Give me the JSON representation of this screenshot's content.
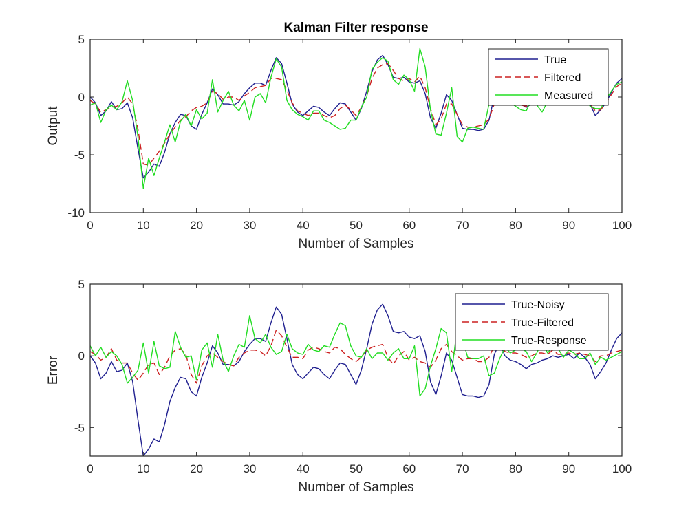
{
  "chart_data": [
    {
      "type": "line",
      "title": "Kalman Filter response",
      "xlabel": "Number of Samples",
      "ylabel": "Output",
      "xlim": [
        0,
        100
      ],
      "ylim": [
        -10,
        5
      ],
      "xticks": [
        0,
        10,
        20,
        30,
        40,
        50,
        60,
        70,
        80,
        90,
        100
      ],
      "yticks": [
        -10,
        -5,
        0,
        5
      ],
      "legend_position": "top-right",
      "grid": false,
      "x": [
        0,
        1,
        2,
        3,
        4,
        5,
        6,
        7,
        8,
        9,
        10,
        11,
        12,
        13,
        14,
        15,
        16,
        17,
        18,
        19,
        20,
        21,
        22,
        23,
        24,
        25,
        26,
        27,
        28,
        29,
        30,
        31,
        32,
        33,
        34,
        35,
        36,
        37,
        38,
        39,
        40,
        41,
        42,
        43,
        44,
        45,
        46,
        47,
        48,
        49,
        50,
        51,
        52,
        53,
        54,
        55,
        56,
        57,
        58,
        59,
        60,
        61,
        62,
        63,
        64,
        65,
        66,
        67,
        68,
        69,
        70,
        71,
        72,
        73,
        74,
        75,
        76,
        77,
        78,
        79,
        80,
        81,
        82,
        83,
        84,
        85,
        86,
        87,
        88,
        89,
        90,
        91,
        92,
        93,
        94,
        95,
        96,
        97,
        98,
        99,
        100
      ],
      "series": [
        {
          "name": "True",
          "color": "#1f1f8f",
          "dash": "solid",
          "values": [
            0,
            -0.5,
            -1.6,
            -1.2,
            -0.4,
            -1.1,
            -1.0,
            -0.5,
            -1.8,
            -4.5,
            -7.0,
            -6.5,
            -5.8,
            -6.0,
            -4.8,
            -3.2,
            -2.2,
            -1.5,
            -1.6,
            -2.5,
            -2.8,
            -1.5,
            -0.5,
            0.7,
            0.2,
            -0.6,
            -0.6,
            -0.7,
            -0.4,
            0.3,
            0.8,
            1.2,
            1.2,
            1.0,
            2.3,
            3.4,
            2.9,
            1.2,
            -0.6,
            -1.3,
            -1.6,
            -1.2,
            -0.8,
            -0.9,
            -1.3,
            -1.6,
            -1.0,
            -0.5,
            -0.6,
            -1.3,
            -2.0,
            -1.0,
            0.5,
            2.2,
            3.2,
            3.6,
            2.8,
            1.7,
            1.6,
            1.7,
            1.3,
            1.2,
            1.4,
            0.3,
            -1.8,
            -2.7,
            -1.4,
            0.2,
            -0.3,
            -1.5,
            -2.7,
            -2.8,
            -2.8,
            -2.9,
            -2.8,
            -2.0,
            0.1,
            0.9,
            0.0,
            -0.3,
            -0.4,
            -0.6,
            -0.9,
            -0.6,
            -0.5,
            -0.3,
            -0.2,
            0.0,
            -0.1,
            0.0,
            0.1,
            -0.2,
            0.2,
            -0.1,
            -0.6,
            -1.6,
            -1.1,
            -0.5,
            0.4,
            1.2,
            1.6
          ]
        },
        {
          "name": "Filtered",
          "color": "#cc2020",
          "dash": "dash",
          "values": [
            -0.3,
            -0.6,
            -1.3,
            -1.1,
            -0.9,
            -0.8,
            -0.5,
            0.0,
            -0.6,
            -2.8,
            -5.8,
            -5.9,
            -5.3,
            -4.7,
            -4.0,
            -3.2,
            -2.6,
            -2.0,
            -1.7,
            -1.2,
            -0.9,
            -0.8,
            -0.5,
            0.5,
            0.3,
            -0.2,
            0.0,
            0.0,
            -0.3,
            0.1,
            0.4,
            0.8,
            0.9,
            1.0,
            1.6,
            1.6,
            1.5,
            0.6,
            -0.5,
            -1.2,
            -1.4,
            -1.6,
            -1.4,
            -1.4,
            -1.6,
            -1.8,
            -1.6,
            -1.0,
            -0.7,
            -1.1,
            -1.6,
            -0.9,
            0.1,
            1.6,
            2.5,
            2.8,
            2.9,
            2.3,
            1.6,
            1.4,
            1.6,
            1.3,
            1.8,
            0.8,
            -1.0,
            -2.4,
            -1.9,
            -0.6,
            -0.6,
            -1.5,
            -2.4,
            -2.6,
            -2.6,
            -2.5,
            -2.4,
            -1.9,
            -0.6,
            0.2,
            -0.3,
            -0.5,
            -0.6,
            -0.7,
            -0.8,
            -0.6,
            -0.7,
            -0.5,
            -0.3,
            -0.4,
            -0.2,
            -0.1,
            -0.1,
            -0.3,
            0.0,
            -0.2,
            -0.6,
            -1.2,
            -1.1,
            -0.5,
            0.2,
            0.9,
            1.2
          ]
        },
        {
          "name": "Measured",
          "color": "#22dd22",
          "dash": "solid",
          "values": [
            -0.7,
            -0.5,
            -2.2,
            -1.1,
            -0.7,
            -1.1,
            -0.4,
            1.4,
            -0.3,
            -3.5,
            -7.9,
            -5.3,
            -6.8,
            -5.3,
            -3.9,
            -2.4,
            -3.9,
            -2.1,
            -1.5,
            -2.5,
            -1.1,
            -1.9,
            -1.4,
            1.5,
            -1.3,
            -0.3,
            0.5,
            -0.7,
            -1.2,
            -0.3,
            -2.0,
            0.0,
            0.3,
            -0.5,
            1.7,
            3.3,
            2.6,
            -0.3,
            -1.1,
            -1.5,
            -1.7,
            -2.0,
            -1.2,
            -1.2,
            -2.0,
            -2.2,
            -2.5,
            -2.8,
            -2.7,
            -2.0,
            -2.0,
            -0.9,
            0.0,
            2.4,
            3.0,
            3.4,
            3.1,
            1.5,
            1.1,
            1.9,
            1.5,
            0.5,
            4.2,
            2.6,
            -1.1,
            -3.2,
            -3.3,
            -1.4,
            0.8,
            -3.4,
            -3.9,
            -2.7,
            -2.6,
            -2.7,
            -2.8,
            -0.6,
            1.3,
            1.1,
            -0.6,
            -0.5,
            -0.8,
            -1.1,
            -1.2,
            -0.2,
            -0.7,
            -1.3,
            -0.4,
            -0.6,
            -0.6,
            0.1,
            -0.3,
            -0.4,
            0.4,
            0.1,
            -0.8,
            -1.0,
            -1.0,
            -0.2,
            0.5,
            1.1,
            1.3
          ]
        }
      ]
    },
    {
      "type": "line",
      "title": "",
      "xlabel": "Number of Samples",
      "ylabel": "Error",
      "xlim": [
        0,
        100
      ],
      "ylim": [
        -7,
        5
      ],
      "xticks": [
        0,
        10,
        20,
        30,
        40,
        50,
        60,
        70,
        80,
        90,
        100
      ],
      "yticks": [
        -5,
        0,
        5
      ],
      "legend_position": "top-right",
      "grid": false,
      "x": [
        0,
        1,
        2,
        3,
        4,
        5,
        6,
        7,
        8,
        9,
        10,
        11,
        12,
        13,
        14,
        15,
        16,
        17,
        18,
        19,
        20,
        21,
        22,
        23,
        24,
        25,
        26,
        27,
        28,
        29,
        30,
        31,
        32,
        33,
        34,
        35,
        36,
        37,
        38,
        39,
        40,
        41,
        42,
        43,
        44,
        45,
        46,
        47,
        48,
        49,
        50,
        51,
        52,
        53,
        54,
        55,
        56,
        57,
        58,
        59,
        60,
        61,
        62,
        63,
        64,
        65,
        66,
        67,
        68,
        69,
        70,
        71,
        72,
        73,
        74,
        75,
        76,
        77,
        78,
        79,
        80,
        81,
        82,
        83,
        84,
        85,
        86,
        87,
        88,
        89,
        90,
        91,
        92,
        93,
        94,
        95,
        96,
        97,
        98,
        99,
        100
      ],
      "series": [
        {
          "name": "True-Noisy",
          "color": "#1f1f8f",
          "dash": "solid",
          "values": [
            0,
            -0.5,
            -1.6,
            -1.2,
            -0.4,
            -1.1,
            -1.0,
            -0.5,
            -1.8,
            -4.5,
            -7.0,
            -6.5,
            -5.8,
            -6.0,
            -4.8,
            -3.2,
            -2.2,
            -1.5,
            -1.6,
            -2.5,
            -2.8,
            -1.5,
            -0.5,
            0.7,
            0.2,
            -0.6,
            -0.6,
            -0.7,
            -0.4,
            0.3,
            0.8,
            1.2,
            1.2,
            1.0,
            2.3,
            3.4,
            2.9,
            1.2,
            -0.6,
            -1.3,
            -1.6,
            -1.2,
            -0.8,
            -0.9,
            -1.3,
            -1.6,
            -1.0,
            -0.5,
            -0.6,
            -1.3,
            -2.0,
            -1.0,
            0.5,
            2.2,
            3.2,
            3.6,
            2.8,
            1.7,
            1.6,
            1.7,
            1.3,
            1.2,
            1.4,
            0.3,
            -1.8,
            -2.7,
            -1.4,
            0.2,
            -0.3,
            -1.5,
            -2.7,
            -2.8,
            -2.8,
            -2.9,
            -2.8,
            -2.0,
            0.1,
            0.9,
            0.0,
            -0.3,
            -0.4,
            -0.6,
            -0.9,
            -0.6,
            -0.5,
            -0.3,
            -0.2,
            0.0,
            -0.1,
            0.0,
            0.1,
            -0.2,
            0.2,
            -0.1,
            -0.6,
            -1.6,
            -1.1,
            -0.5,
            0.4,
            1.2,
            1.6
          ]
        },
        {
          "name": "True-Filtered",
          "color": "#cc2020",
          "dash": "dash",
          "values": [
            0.3,
            0.1,
            -0.3,
            -0.1,
            0.5,
            -0.3,
            -0.5,
            -0.5,
            -1.2,
            -1.7,
            -1.2,
            -0.6,
            -0.5,
            -1.3,
            -0.8,
            0.0,
            0.4,
            0.5,
            0.1,
            -1.3,
            -1.9,
            -0.7,
            0.0,
            0.2,
            -0.1,
            -0.4,
            -0.6,
            -0.7,
            -0.1,
            0.2,
            0.4,
            0.4,
            0.3,
            0.0,
            0.7,
            1.8,
            1.4,
            0.6,
            -0.1,
            -0.1,
            -0.2,
            0.4,
            0.6,
            0.5,
            0.3,
            0.2,
            0.6,
            0.5,
            0.1,
            -0.2,
            -0.4,
            -0.1,
            0.4,
            0.6,
            0.7,
            0.8,
            -0.1,
            -0.6,
            0.0,
            0.3,
            -0.3,
            -0.1,
            -0.4,
            -0.5,
            -0.8,
            -0.3,
            0.5,
            0.8,
            0.3,
            0.0,
            -0.3,
            -0.2,
            -0.2,
            -0.4,
            -0.4,
            -0.1,
            0.7,
            0.7,
            0.3,
            0.2,
            0.2,
            0.1,
            -0.1,
            0.0,
            0.2,
            0.2,
            0.1,
            0.4,
            0.1,
            0.1,
            0.2,
            0.1,
            0.2,
            0.1,
            0.0,
            -0.4,
            0.0,
            0.0,
            0.2,
            0.3,
            0.4
          ]
        },
        {
          "name": "True-Response",
          "color": "#22dd22",
          "dash": "solid",
          "values": [
            0.7,
            0.0,
            0.6,
            -0.1,
            0.3,
            0.0,
            -0.6,
            -1.9,
            -1.5,
            -1.0,
            0.9,
            -1.2,
            1.0,
            -0.7,
            -0.9,
            -0.8,
            1.7,
            0.6,
            -0.1,
            0.0,
            -1.7,
            0.4,
            0.9,
            -0.8,
            1.5,
            -0.3,
            -1.1,
            0.0,
            0.8,
            0.6,
            2.8,
            1.2,
            0.9,
            1.5,
            0.6,
            0.1,
            0.3,
            1.5,
            0.5,
            0.2,
            0.1,
            0.8,
            0.4,
            0.3,
            0.7,
            0.6,
            1.5,
            2.3,
            2.1,
            0.7,
            0.0,
            -0.1,
            0.5,
            -0.2,
            0.2,
            0.2,
            -0.3,
            0.2,
            0.5,
            -0.2,
            -0.2,
            0.7,
            -2.8,
            -2.3,
            -0.7,
            0.5,
            1.9,
            1.6,
            -1.1,
            1.9,
            1.2,
            -0.1,
            -0.2,
            -0.2,
            0.0,
            -1.4,
            -1.2,
            -0.2,
            0.6,
            0.2,
            0.4,
            0.5,
            0.3,
            -0.4,
            0.2,
            1.0,
            0.2,
            0.6,
            0.5,
            -0.1,
            0.4,
            0.2,
            -0.2,
            -0.2,
            0.2,
            -0.6,
            -0.1,
            -0.3,
            -0.1,
            0.1,
            0.3
          ]
        }
      ]
    }
  ]
}
